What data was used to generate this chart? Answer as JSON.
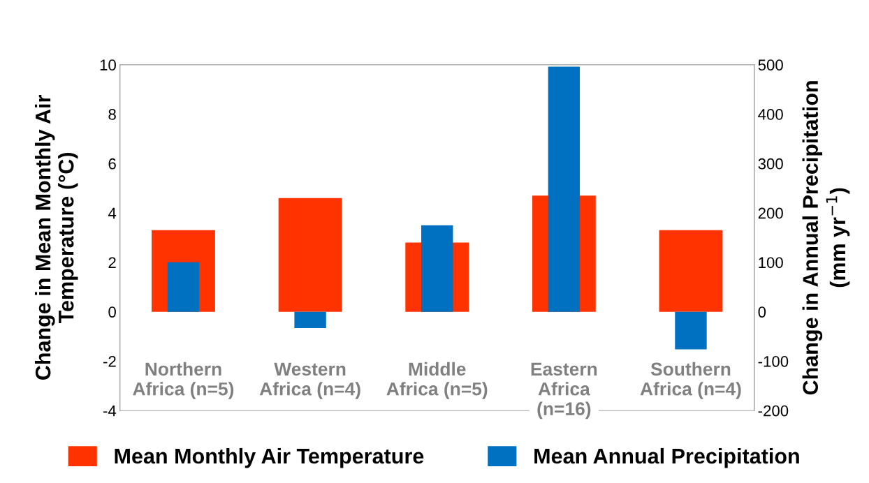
{
  "chart_data": {
    "type": "bar",
    "categories": [
      "Northern\nAfrica (n=5)",
      "Western\nAfrica (n=4)",
      "Middle\nAfrica (n=5)",
      "Eastern\nAfrica\n(n=16)",
      "Southern\nAfrica (n=4)"
    ],
    "series": [
      {
        "name": "Mean Monthly Air Temperature",
        "color": "#ff3300",
        "values": [
          3.3,
          4.6,
          2.8,
          4.7,
          3.3
        ]
      },
      {
        "name": "Mean Annual Precipitation",
        "color": "#0070c0",
        "axis": "y2",
        "values": [
          100,
          -33,
          175,
          496,
          -76
        ]
      }
    ],
    "ylabel": "Change in Mean Monthly Air\nTemperature (°C)",
    "y2label": "Change in Annual Precipitation\n(mm yr$^{−1}$)",
    "ylim": [
      -4,
      10
    ],
    "yticks": [
      -4,
      -2,
      0,
      2,
      4,
      6,
      8,
      10
    ],
    "y2lim": [
      -200,
      500
    ],
    "y2ticks": [
      -200,
      -100,
      0,
      100,
      200,
      300,
      400,
      500
    ],
    "grid": false,
    "legend": "bottom"
  }
}
